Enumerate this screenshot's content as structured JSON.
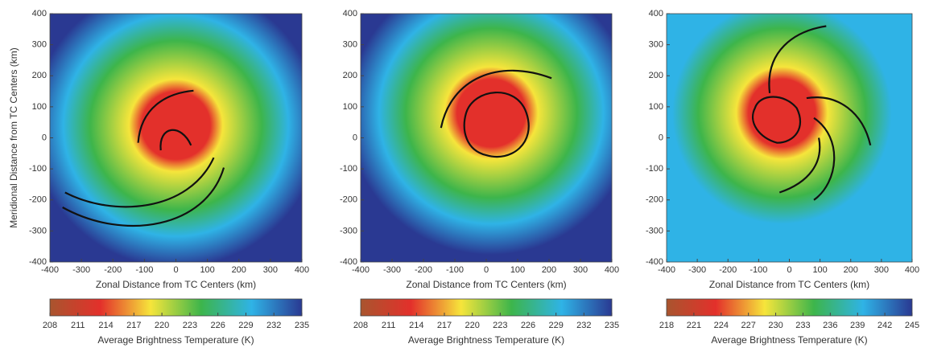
{
  "chart_data": [
    {
      "type": "heatmap",
      "xlabel": "Zonal Distance from TC Centers (km)",
      "ylabel": "Meridional Distance from TC Centers (km)",
      "xlim": [
        -400,
        400
      ],
      "xticks": [
        -400,
        -300,
        -200,
        -100,
        0,
        100,
        200,
        300,
        400
      ],
      "ylim": [
        -400,
        400
      ],
      "yticks": [
        -400,
        -300,
        -200,
        -100,
        0,
        100,
        200,
        300,
        400
      ],
      "clim": [
        208,
        235
      ],
      "cticks": [
        208,
        211,
        214,
        217,
        220,
        223,
        226,
        229,
        232,
        235
      ],
      "colorbar_label": "Average Brightness Temperature (K)",
      "colormap": [
        "#a9552e",
        "#e3302b",
        "#f6e53b",
        "#3db54b",
        "#2fb3e6",
        "#2a3992"
      ]
    },
    {
      "type": "heatmap",
      "xlabel": "Zonal Distance from TC Centers (km)",
      "xlim": [
        -400,
        400
      ],
      "xticks": [
        -400,
        -300,
        -200,
        -100,
        0,
        100,
        200,
        300,
        400
      ],
      "ylim": [
        -400,
        400
      ],
      "yticks": [
        -400,
        -300,
        -200,
        -100,
        0,
        100,
        200,
        300,
        400
      ],
      "clim": [
        208,
        235
      ],
      "cticks": [
        208,
        211,
        214,
        217,
        220,
        223,
        226,
        229,
        232,
        235
      ],
      "colorbar_label": "Average Brightness Temperature (K)",
      "colormap": [
        "#a9552e",
        "#e3302b",
        "#f6e53b",
        "#3db54b",
        "#2fb3e6",
        "#2a3992"
      ]
    },
    {
      "type": "heatmap",
      "xlabel": "Zonal Distance from TC Centers (km)",
      "xlim": [
        -400,
        400
      ],
      "xticks": [
        -400,
        -300,
        -200,
        -100,
        0,
        100,
        200,
        300,
        400
      ],
      "ylim": [
        -400,
        400
      ],
      "yticks": [
        -400,
        -300,
        -200,
        -100,
        0,
        100,
        200,
        300,
        400
      ],
      "clim": [
        218,
        245
      ],
      "cticks": [
        218,
        221,
        224,
        227,
        230,
        233,
        236,
        239,
        242,
        245
      ],
      "colorbar_label": "Average Brightness Temperature (K)",
      "colormap": [
        "#a9552e",
        "#e3302b",
        "#f6e53b",
        "#3db54b",
        "#2fb3e6",
        "#2a3992"
      ]
    }
  ]
}
